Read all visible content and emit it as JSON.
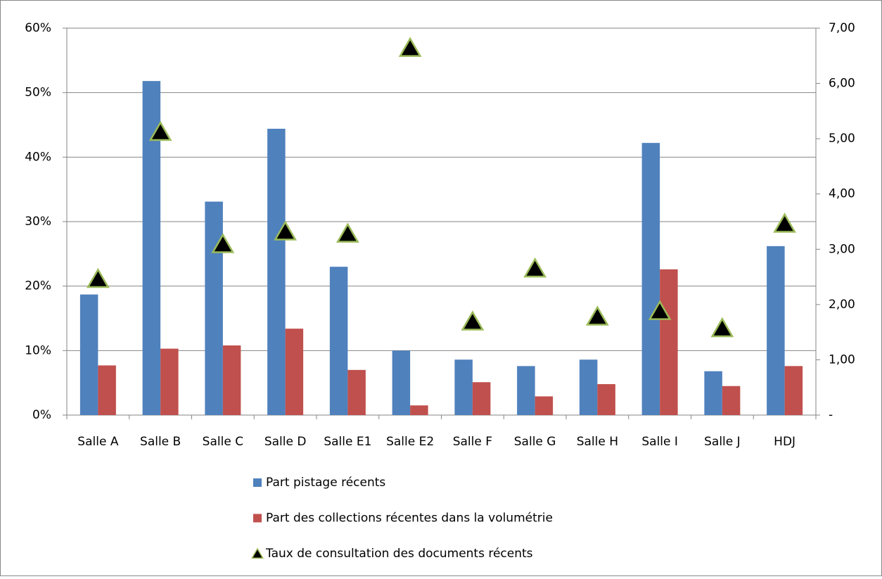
{
  "chart_data": {
    "type": "bar",
    "categories": [
      "Salle A",
      "Salle B",
      "Salle C",
      "Salle D",
      "Salle E1",
      "Salle E2",
      "Salle F",
      "Salle G",
      "Salle H",
      "Salle I",
      "Salle J",
      "HDJ"
    ],
    "series": [
      {
        "name": "Part pistage récents",
        "color": "#4f81bd",
        "type": "bar",
        "values": [
          18.7,
          51.8,
          33.1,
          44.4,
          23.0,
          10.0,
          8.6,
          7.6,
          8.6,
          42.2,
          6.8,
          26.2
        ]
      },
      {
        "name": "Part des collections récentes dans la volumétrie",
        "color": "#c0504d",
        "type": "bar",
        "values": [
          7.7,
          10.3,
          10.8,
          13.4,
          7.0,
          1.5,
          5.1,
          2.9,
          4.8,
          22.6,
          4.5,
          7.6
        ]
      },
      {
        "name": "Taux de consultation des documents récents",
        "color": "#000000",
        "edge_color": "#9bbb59",
        "type": "scatter",
        "marker": "triangle",
        "axis": "y2",
        "values": [
          2.44,
          5.1,
          3.07,
          3.3,
          3.26,
          6.62,
          1.67,
          2.63,
          1.76,
          1.86,
          1.55,
          3.44
        ]
      }
    ],
    "ylim": [
      0,
      60
    ],
    "yticks": [
      {
        "value": 0,
        "label": "0%"
      },
      {
        "value": 10,
        "label": "10%"
      },
      {
        "value": 20,
        "label": "20%"
      },
      {
        "value": 30,
        "label": "30%"
      },
      {
        "value": 40,
        "label": "40%"
      },
      {
        "value": 50,
        "label": "50%"
      },
      {
        "value": 60,
        "label": "60%"
      }
    ],
    "y2lim": [
      0,
      7
    ],
    "y2ticks": [
      {
        "value": 0,
        "label": "-"
      },
      {
        "value": 1,
        "label": "1,00"
      },
      {
        "value": 2,
        "label": "2,00"
      },
      {
        "value": 3,
        "label": "3,00"
      },
      {
        "value": 4,
        "label": "4,00"
      },
      {
        "value": 5,
        "label": "5,00"
      },
      {
        "value": 6,
        "label": "6,00"
      },
      {
        "value": 7,
        "label": "7,00"
      }
    ],
    "grid": true,
    "legend": "bottom"
  }
}
